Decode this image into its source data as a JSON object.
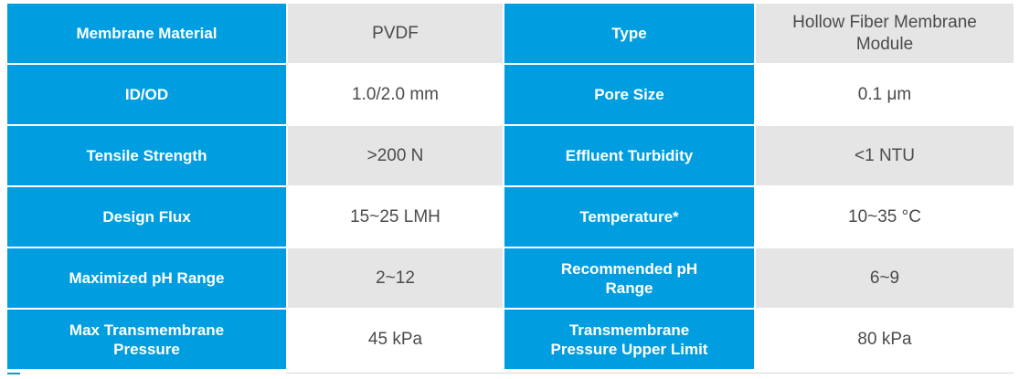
{
  "colors": {
    "accent_blue": "#009EE0",
    "row_shade_gray": "#E5E5E6",
    "value_text": "#4B4B4D",
    "label_text": "#FFFFFF"
  },
  "table": {
    "rows": [
      {
        "param1": "Membrane Material",
        "value1": "PVDF",
        "param2": "Type",
        "value2": "Hollow Fiber Membrane Module"
      },
      {
        "param1": "ID/OD",
        "value1": "1.0/2.0 mm",
        "param2": "Pore Size",
        "value2": "0.1 μm"
      },
      {
        "param1": "Tensile Strength",
        "value1": ">200 N",
        "param2": "Effluent Turbidity",
        "value2": "<1 NTU"
      },
      {
        "param1": "Design Flux",
        "value1": "15~25 LMH",
        "param2": "Temperature*",
        "value2": "10~35 °C"
      },
      {
        "param1": "Maximized pH Range",
        "value1": "2~12",
        "param2": "Recommended pH Range",
        "value2": "6~9"
      },
      {
        "param1": "Max Transmembrane Pressure",
        "value1": "45 kPa",
        "param2": "Transmembrane Pressure Upper Limit",
        "value2": "80 kPa"
      }
    ]
  }
}
